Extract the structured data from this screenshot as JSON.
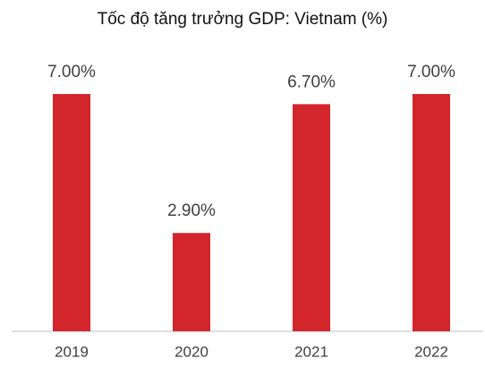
{
  "chart_data": {
    "type": "bar",
    "title": "Tốc độ tăng trưởng GDP: Vietnam (%)",
    "categories": [
      "2019",
      "2020",
      "2021",
      "2022"
    ],
    "values": [
      7.0,
      2.9,
      6.7,
      7.0
    ],
    "value_labels": [
      "7.00%",
      "2.90%",
      "6.70%",
      "7.00%"
    ],
    "color": "#d2262c",
    "ylim": [
      0,
      7
    ]
  }
}
